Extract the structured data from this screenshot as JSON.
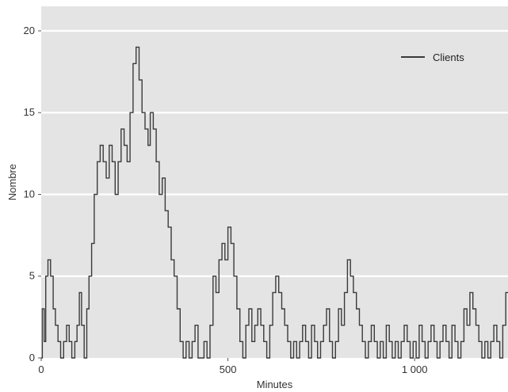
{
  "chart_data": {
    "type": "line",
    "line_shape": "step",
    "title": "",
    "xlabel": "Minutes",
    "ylabel": "Nombre",
    "xlim": [
      0,
      1250
    ],
    "ylim": [
      0,
      21.5
    ],
    "x_ticks": [
      0,
      500,
      1000
    ],
    "x_tick_labels": [
      "0",
      "500",
      "1 000"
    ],
    "y_ticks": [
      0,
      5,
      10,
      15,
      20
    ],
    "y_tick_labels": [
      "0",
      "5",
      "10",
      "15",
      "20"
    ],
    "grid": "horizontal",
    "legend": "top-right",
    "colors": {
      "background": "#e4e4e4",
      "grid": "#ffffff",
      "line": "#3a3a3a"
    },
    "series": [
      {
        "name": "Clients",
        "x": [
          0,
          3,
          8,
          12,
          18,
          25,
          32,
          38,
          45,
          52,
          60,
          68,
          75,
          82,
          90,
          96,
          102,
          108,
          115,
          122,
          128,
          135,
          142,
          150,
          158,
          166,
          174,
          182,
          190,
          198,
          206,
          214,
          222,
          230,
          238,
          246,
          254,
          262,
          270,
          278,
          286,
          292,
          300,
          308,
          316,
          324,
          332,
          340,
          348,
          356,
          364,
          372,
          380,
          388,
          396,
          404,
          412,
          420,
          428,
          436,
          444,
          452,
          460,
          468,
          476,
          484,
          492,
          500,
          508,
          516,
          524,
          532,
          540,
          548,
          556,
          564,
          572,
          580,
          588,
          596,
          604,
          612,
          620,
          628,
          636,
          644,
          652,
          660,
          668,
          676,
          684,
          692,
          700,
          708,
          716,
          724,
          732,
          740,
          748,
          756,
          764,
          772,
          780,
          788,
          796,
          804,
          812,
          820,
          828,
          836,
          844,
          852,
          860,
          868,
          876,
          884,
          892,
          900,
          908,
          916,
          924,
          932,
          940,
          948,
          956,
          964,
          972,
          980,
          988,
          996,
          1004,
          1012,
          1020,
          1028,
          1036,
          1044,
          1052,
          1060,
          1068,
          1076,
          1084,
          1092,
          1100,
          1108,
          1116,
          1124,
          1132,
          1140,
          1148,
          1156,
          1164,
          1172,
          1180,
          1188,
          1196,
          1204,
          1212,
          1220,
          1228,
          1236,
          1244
        ],
        "values": [
          0,
          3,
          1,
          5,
          6,
          5,
          3,
          2,
          1,
          0,
          1,
          2,
          1,
          0,
          1,
          2,
          4,
          2,
          0,
          3,
          5,
          7,
          10,
          12,
          13,
          12,
          11,
          13,
          12,
          10,
          12,
          14,
          13,
          12,
          15,
          18,
          19,
          17,
          15,
          14,
          13,
          15,
          14,
          12,
          10,
          11,
          9,
          8,
          6,
          5,
          3,
          1,
          0,
          1,
          0,
          1,
          2,
          0,
          0,
          1,
          0,
          2,
          5,
          4,
          6,
          7,
          6,
          8,
          7,
          5,
          3,
          1,
          0,
          2,
          3,
          1,
          2,
          3,
          2,
          1,
          0,
          2,
          4,
          5,
          4,
          3,
          2,
          1,
          0,
          1,
          0,
          1,
          2,
          1,
          0,
          2,
          1,
          0,
          1,
          2,
          3,
          1,
          0,
          1,
          3,
          2,
          4,
          6,
          5,
          4,
          3,
          2,
          1,
          0,
          1,
          2,
          1,
          0,
          1,
          0,
          2,
          1,
          0,
          1,
          0,
          1,
          2,
          1,
          0,
          1,
          0,
          2,
          1,
          0,
          1,
          2,
          1,
          0,
          1,
          2,
          1,
          0,
          2,
          1,
          0,
          1,
          3,
          2,
          4,
          3,
          2,
          1,
          0,
          1,
          0,
          1,
          2,
          1,
          0,
          2,
          4
        ]
      }
    ]
  }
}
